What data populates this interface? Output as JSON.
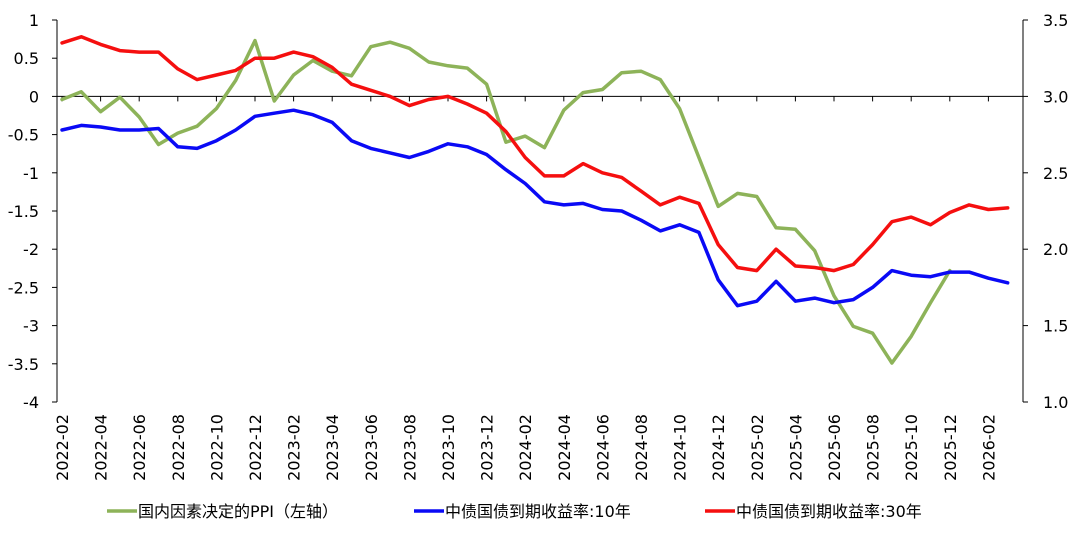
{
  "chart_data": {
    "type": "line",
    "x": [
      "2022-02",
      "2022-03",
      "2022-04",
      "2022-05",
      "2022-06",
      "2022-07",
      "2022-08",
      "2022-09",
      "2022-10",
      "2022-11",
      "2022-12",
      "2023-01",
      "2023-02",
      "2023-03",
      "2023-04",
      "2023-05",
      "2023-06",
      "2023-07",
      "2023-08",
      "2023-09",
      "2023-10",
      "2023-11",
      "2023-12",
      "2024-01",
      "2024-02",
      "2024-03",
      "2024-04",
      "2024-05",
      "2024-06",
      "2024-07",
      "2024-08",
      "2024-09",
      "2024-10",
      "2024-11",
      "2024-12",
      "2025-01",
      "2025-02",
      "2025-03",
      "2025-04",
      "2025-05",
      "2025-06",
      "2025-07",
      "2025-08",
      "2025-09",
      "2025-10",
      "2025-11",
      "2025-12",
      "2026-01",
      "2026-02",
      "2026-03"
    ],
    "x_tick_labels": [
      "2022-02",
      "2022-04",
      "2022-06",
      "2022-08",
      "2022-10",
      "2022-12",
      "2023-02",
      "2023-04",
      "2023-06",
      "2023-08",
      "2023-10",
      "2023-12",
      "2024-02",
      "2024-04",
      "2024-06",
      "2024-08",
      "2024-10",
      "2024-12",
      "2025-02",
      "2025-04",
      "2025-06",
      "2025-08",
      "2025-10",
      "2025-12",
      "2026-02"
    ],
    "y_left": {
      "range": [
        -4,
        1
      ],
      "ticks": [
        "1",
        "0.5",
        "0",
        "-0.5",
        "-1",
        "-1.5",
        "-2",
        "-2.5",
        "-3",
        "-3.5",
        "-4"
      ]
    },
    "y_right": {
      "range": [
        1.0,
        3.5
      ],
      "ticks": [
        "3.5",
        "3.0",
        "2.5",
        "2.0",
        "1.5",
        "1.0"
      ]
    },
    "grid": false,
    "legend_position": "bottom",
    "series": [
      {
        "name": "国内因素决定的PPI（左轴）",
        "axis": "left",
        "color": "#8DB359",
        "values": [
          -0.04,
          0.06,
          -0.2,
          -0.01,
          -0.27,
          -0.63,
          -0.48,
          -0.39,
          -0.16,
          0.21,
          0.73,
          -0.06,
          0.28,
          0.47,
          0.33,
          0.27,
          0.65,
          0.71,
          0.63,
          0.45,
          0.4,
          0.37,
          0.16,
          -0.6,
          -0.52,
          -0.67,
          -0.18,
          0.05,
          0.09,
          0.31,
          0.33,
          0.22,
          -0.16,
          -0.8,
          -1.44,
          -1.27,
          -1.31,
          -1.72,
          -1.74,
          -2.02,
          -2.61,
          -3.01,
          -3.1,
          -3.49,
          -3.14,
          -2.7,
          -2.28,
          null,
          null,
          null
        ]
      },
      {
        "name": "中债国债到期收益率:10年",
        "axis": "right",
        "color": "#0A0AF5",
        "values": [
          2.78,
          2.81,
          2.8,
          2.78,
          2.78,
          2.79,
          2.67,
          2.66,
          2.71,
          2.78,
          2.87,
          2.89,
          2.91,
          2.88,
          2.83,
          2.71,
          2.66,
          2.63,
          2.6,
          2.64,
          2.69,
          2.67,
          2.62,
          2.52,
          2.43,
          2.31,
          2.29,
          2.3,
          2.26,
          2.25,
          2.19,
          2.12,
          2.16,
          2.11,
          1.8,
          1.63,
          1.66,
          1.79,
          1.66,
          1.68,
          1.65,
          1.67,
          1.75,
          1.86,
          1.83,
          1.82,
          1.85,
          1.85,
          1.81,
          1.78
        ]
      },
      {
        "name": "中债国债到期收益率:30年",
        "axis": "right",
        "color": "#F50F0F",
        "values": [
          3.35,
          3.39,
          3.34,
          3.3,
          3.29,
          3.29,
          3.18,
          3.11,
          3.14,
          3.17,
          3.25,
          3.25,
          3.29,
          3.26,
          3.19,
          3.08,
          3.04,
          3.0,
          2.94,
          2.98,
          3.0,
          2.95,
          2.89,
          2.77,
          2.6,
          2.48,
          2.48,
          2.56,
          2.5,
          2.47,
          2.38,
          2.29,
          2.34,
          2.3,
          2.03,
          1.88,
          1.86,
          2.0,
          1.89,
          1.88,
          1.86,
          1.9,
          2.03,
          2.18,
          2.21,
          2.16,
          2.24,
          2.29,
          2.26,
          2.27
        ]
      }
    ]
  }
}
